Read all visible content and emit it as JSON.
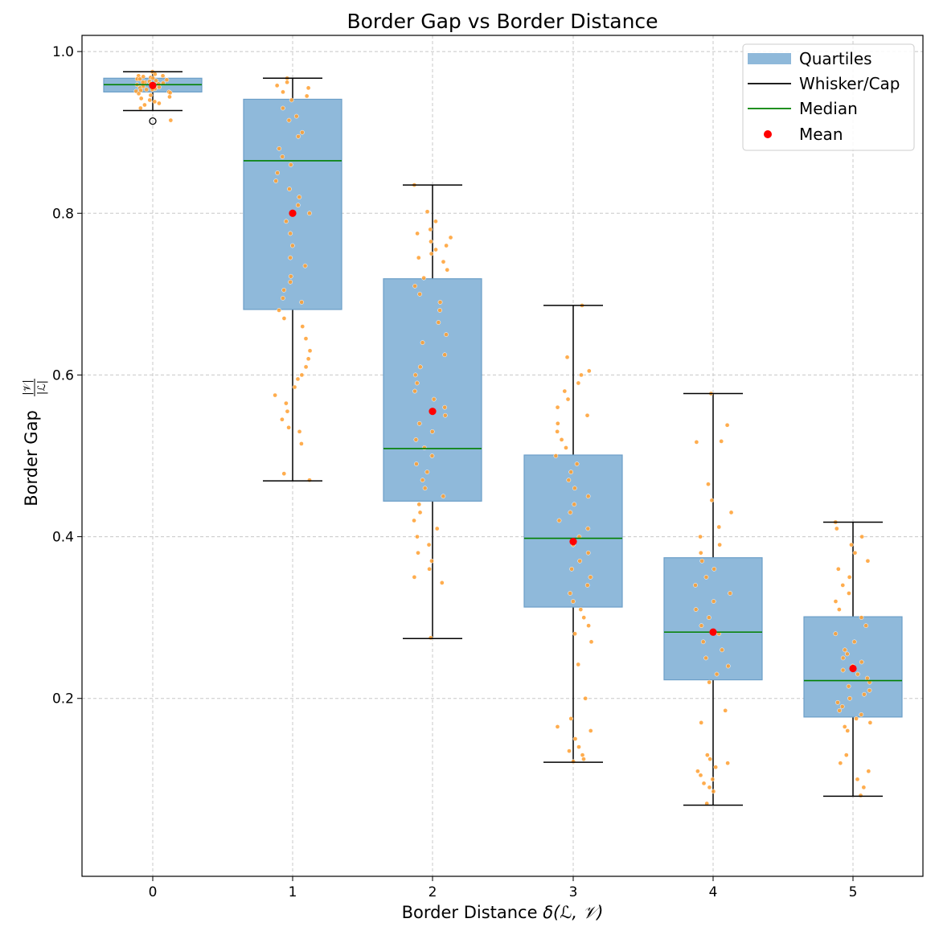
{
  "chart_data": {
    "type": "box",
    "title": "Border Gap vs Border Distance",
    "xlabel_prefix": "Border Distance ",
    "xlabel_math": "δ(ℒ, 𝒱)",
    "ylabel_prefix": "Border Gap ",
    "ylabel_numerator": "|𝒱|",
    "ylabel_denominator": "|ℒ|",
    "categories": [
      "0",
      "1",
      "2",
      "3",
      "4",
      "5"
    ],
    "ylim": [
      -0.02,
      1.02
    ],
    "yticks": [
      "0.2",
      "0.4",
      "0.6",
      "0.8",
      "1.0"
    ],
    "grid": true,
    "legend_position": "top-right",
    "legend": [
      "Quartiles",
      "Whisker/Cap",
      "Median",
      "Mean"
    ],
    "boxes": [
      {
        "x": "0",
        "whisker_low": 0.927,
        "q1": 0.95,
        "median": 0.959,
        "q3": 0.967,
        "whisker_high": 0.975,
        "mean": 0.958,
        "outliers": [
          0.914
        ]
      },
      {
        "x": "1",
        "whisker_low": 0.469,
        "q1": 0.681,
        "median": 0.865,
        "q3": 0.941,
        "whisker_high": 0.967,
        "mean": 0.8,
        "outliers": []
      },
      {
        "x": "2",
        "whisker_low": 0.274,
        "q1": 0.444,
        "median": 0.509,
        "q3": 0.719,
        "whisker_high": 0.835,
        "mean": 0.555,
        "outliers": []
      },
      {
        "x": "3",
        "whisker_low": 0.121,
        "q1": 0.313,
        "median": 0.398,
        "q3": 0.501,
        "whisker_high": 0.686,
        "mean": 0.394,
        "outliers": []
      },
      {
        "x": "4",
        "whisker_low": 0.068,
        "q1": 0.223,
        "median": 0.282,
        "q3": 0.374,
        "whisker_high": 0.577,
        "mean": 0.282,
        "outliers": []
      },
      {
        "x": "5",
        "whisker_low": 0.079,
        "q1": 0.177,
        "median": 0.222,
        "q3": 0.301,
        "whisker_high": 0.418,
        "mean": 0.237,
        "outliers": []
      }
    ],
    "jitter_points": [
      [
        0.975,
        0.972,
        0.97,
        0.969,
        0.968,
        0.967,
        0.966,
        0.965,
        0.964,
        0.963,
        0.962,
        0.961,
        0.96,
        0.959,
        0.958,
        0.957,
        0.956,
        0.955,
        0.954,
        0.953,
        0.952,
        0.951,
        0.95,
        0.949,
        0.948,
        0.946,
        0.944,
        0.942,
        0.94,
        0.938,
        0.936,
        0.934,
        0.93,
        0.915,
        0.96,
        0.962,
        0.957,
        0.953,
        0.966,
        0.97
      ],
      [
        0.967,
        0.962,
        0.958,
        0.955,
        0.95,
        0.945,
        0.94,
        0.93,
        0.92,
        0.915,
        0.9,
        0.895,
        0.88,
        0.87,
        0.86,
        0.85,
        0.84,
        0.83,
        0.82,
        0.81,
        0.8,
        0.79,
        0.775,
        0.76,
        0.745,
        0.735,
        0.722,
        0.715,
        0.705,
        0.695,
        0.69,
        0.68,
        0.67,
        0.66,
        0.645,
        0.63,
        0.62,
        0.61,
        0.6,
        0.595,
        0.585,
        0.575,
        0.565,
        0.555,
        0.545,
        0.535,
        0.53,
        0.515,
        0.478,
        0.47
      ],
      [
        0.835,
        0.802,
        0.79,
        0.78,
        0.775,
        0.77,
        0.765,
        0.76,
        0.755,
        0.75,
        0.745,
        0.74,
        0.73,
        0.72,
        0.71,
        0.7,
        0.69,
        0.68,
        0.665,
        0.65,
        0.64,
        0.625,
        0.61,
        0.6,
        0.59,
        0.58,
        0.57,
        0.56,
        0.55,
        0.54,
        0.53,
        0.52,
        0.51,
        0.5,
        0.49,
        0.48,
        0.47,
        0.46,
        0.45,
        0.44,
        0.43,
        0.42,
        0.41,
        0.4,
        0.39,
        0.38,
        0.37,
        0.36,
        0.35,
        0.343,
        0.275
      ],
      [
        0.686,
        0.622,
        0.605,
        0.6,
        0.59,
        0.58,
        0.57,
        0.56,
        0.55,
        0.54,
        0.53,
        0.52,
        0.51,
        0.5,
        0.49,
        0.48,
        0.47,
        0.46,
        0.45,
        0.44,
        0.43,
        0.42,
        0.41,
        0.4,
        0.39,
        0.38,
        0.37,
        0.36,
        0.35,
        0.34,
        0.33,
        0.32,
        0.31,
        0.3,
        0.29,
        0.28,
        0.27,
        0.242,
        0.2,
        0.175,
        0.165,
        0.16,
        0.15,
        0.14,
        0.135,
        0.13,
        0.125,
        0.122
      ],
      [
        0.577,
        0.538,
        0.518,
        0.517,
        0.465,
        0.445,
        0.43,
        0.412,
        0.4,
        0.39,
        0.38,
        0.37,
        0.36,
        0.35,
        0.34,
        0.33,
        0.32,
        0.31,
        0.3,
        0.29,
        0.28,
        0.27,
        0.26,
        0.25,
        0.24,
        0.23,
        0.22,
        0.185,
        0.17,
        0.13,
        0.125,
        0.12,
        0.115,
        0.11,
        0.105,
        0.1,
        0.095,
        0.09,
        0.085,
        0.07
      ],
      [
        0.418,
        0.41,
        0.4,
        0.39,
        0.38,
        0.37,
        0.36,
        0.35,
        0.34,
        0.33,
        0.32,
        0.31,
        0.3,
        0.29,
        0.28,
        0.27,
        0.26,
        0.255,
        0.25,
        0.245,
        0.24,
        0.235,
        0.23,
        0.225,
        0.22,
        0.215,
        0.21,
        0.205,
        0.2,
        0.195,
        0.19,
        0.185,
        0.18,
        0.175,
        0.17,
        0.165,
        0.16,
        0.13,
        0.12,
        0.11,
        0.1,
        0.09,
        0.08
      ]
    ],
    "colors": {
      "box_fill": "#8fb9da",
      "box_edge": "#6b9ec8",
      "whisker": "#000000",
      "median": "#008000",
      "mean": "#ff0000",
      "jitter": "#ff9f2f",
      "grid": "#c8c8c8"
    }
  }
}
